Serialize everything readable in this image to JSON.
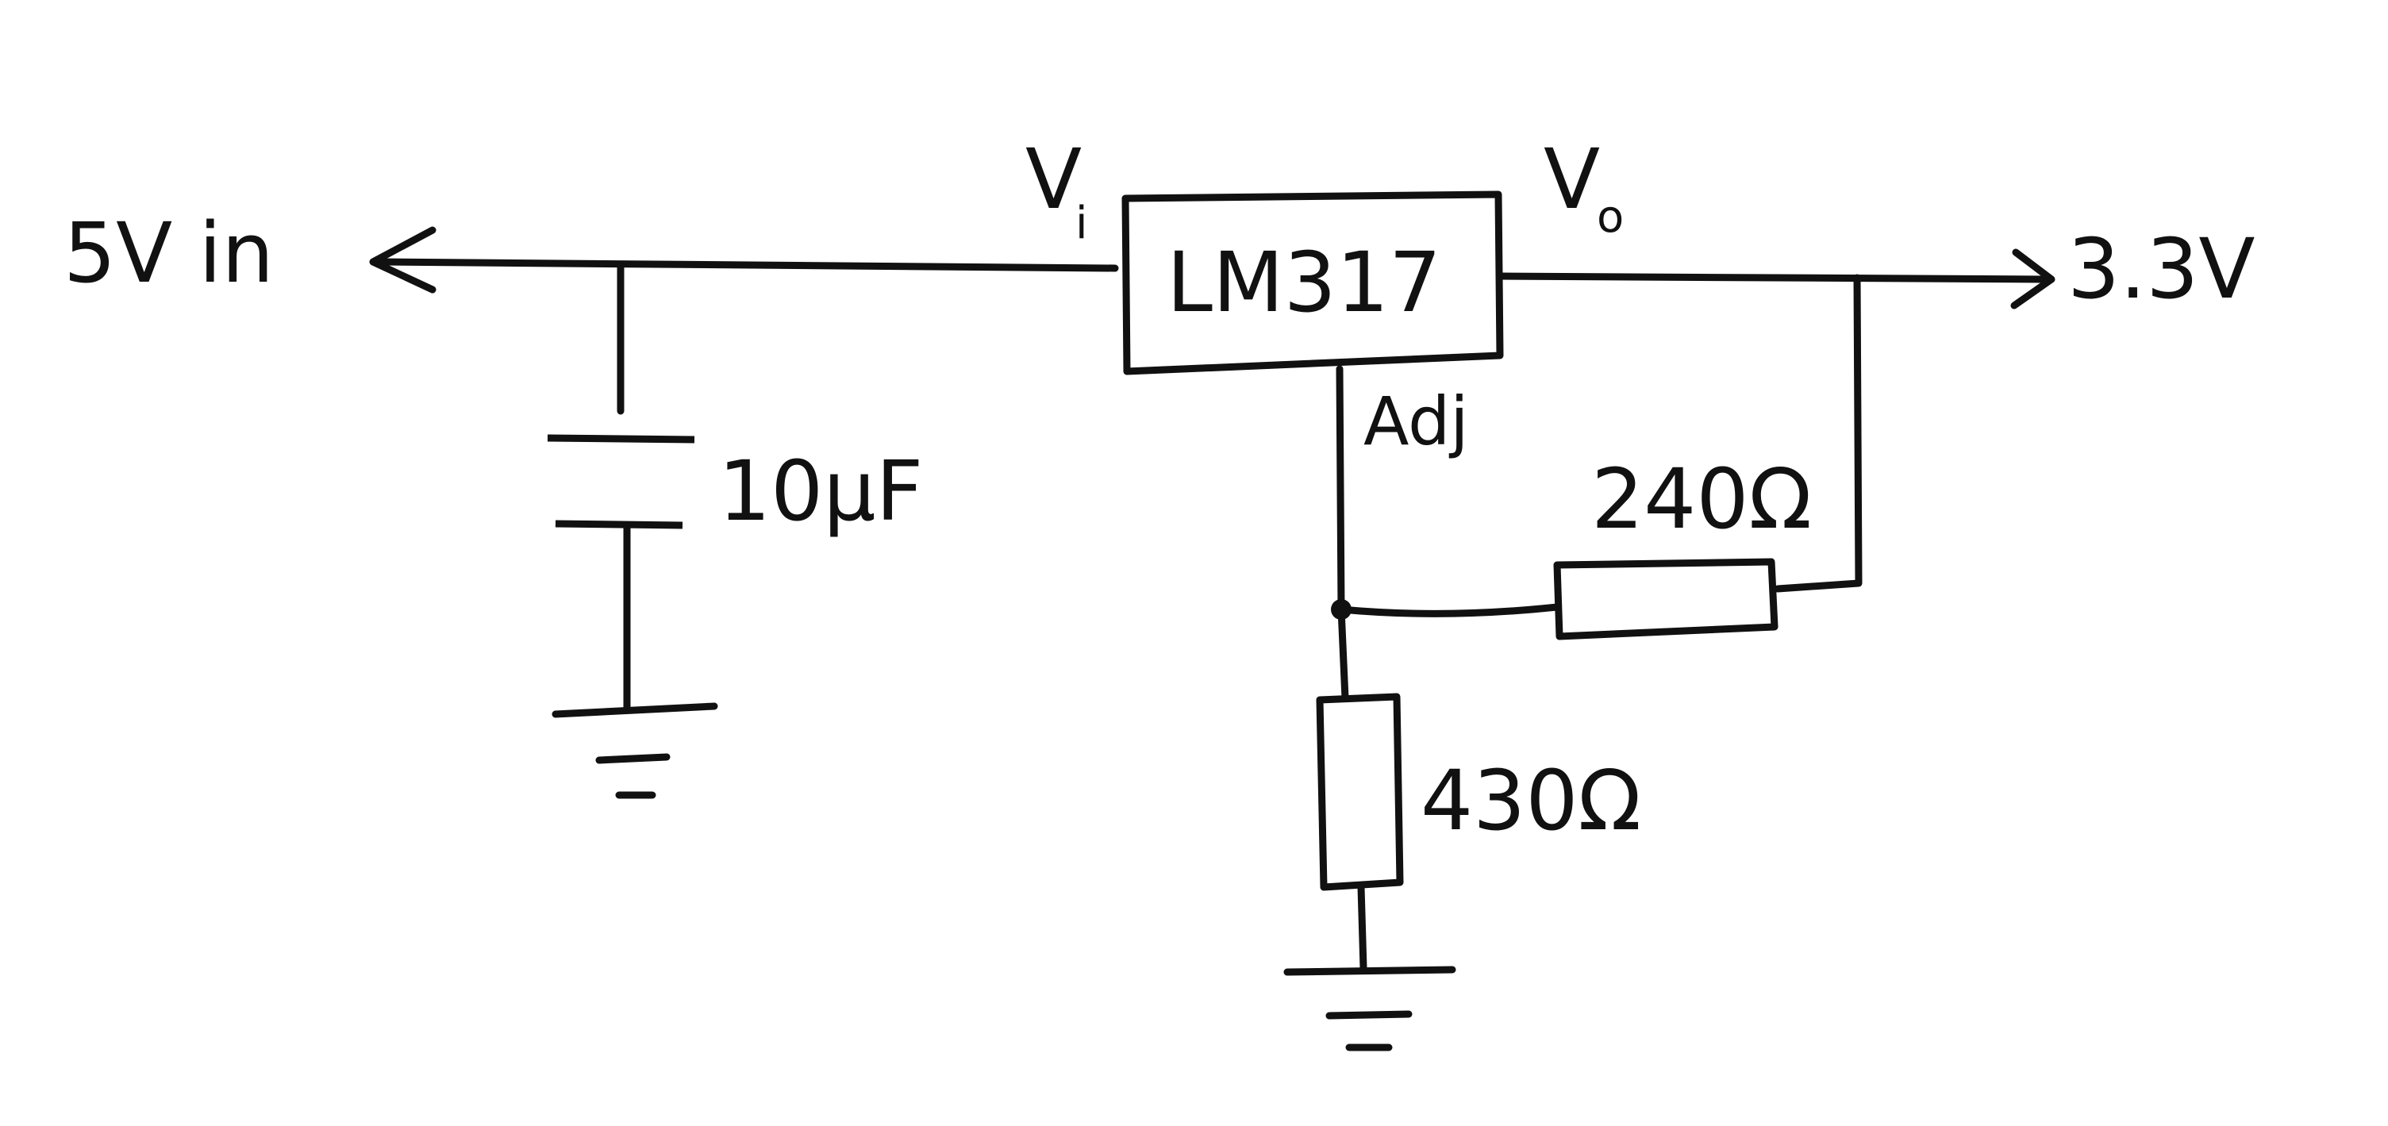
{
  "diagram": {
    "colors": {
      "ink": "#111111",
      "paper": "#ffffff"
    },
    "labels": {
      "input_voltage": "5V in",
      "output_voltage": "3.3V",
      "regulator": "LM317",
      "vin_pin": "V",
      "vin_pin_sub": "i",
      "vout_pin": "V",
      "vout_pin_sub": "o",
      "adj_pin": "Adj",
      "capacitor": "10μF",
      "resistor_top": "240Ω",
      "resistor_bottom": "430Ω"
    }
  }
}
